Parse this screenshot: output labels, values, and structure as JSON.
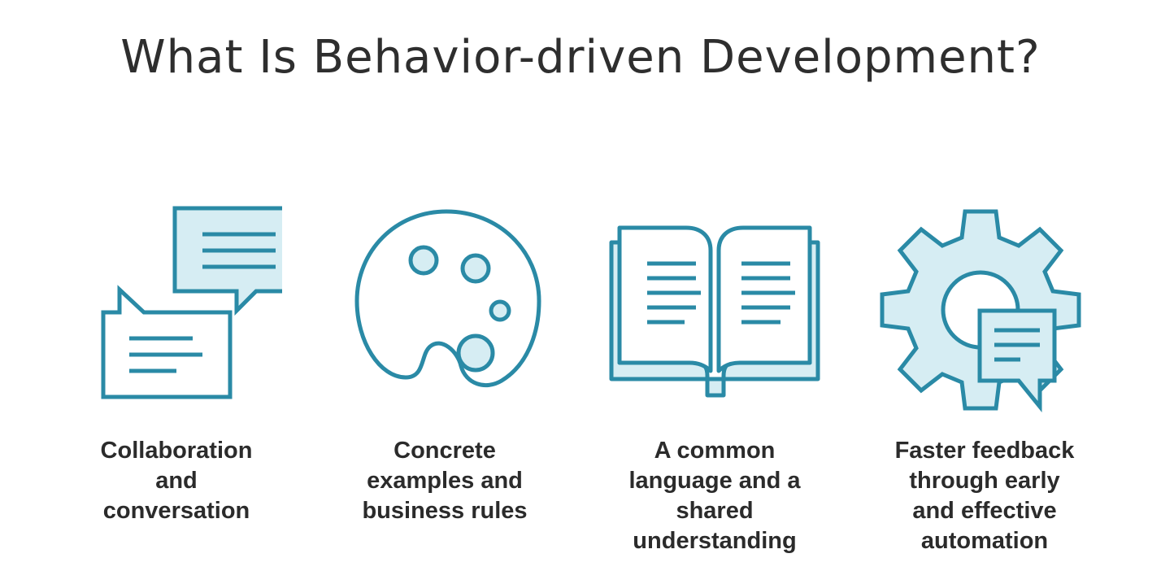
{
  "slide": {
    "title": "What Is Behavior-driven Development?",
    "accent_color": "#2a8aa6",
    "fill_color": "#d6edf3",
    "items": [
      {
        "icon": "speech-bubbles-icon",
        "caption_lines": [
          "Collaboration",
          "and",
          "conversation"
        ]
      },
      {
        "icon": "palette-icon",
        "caption_lines": [
          "Concrete",
          "examples and",
          "business rules"
        ]
      },
      {
        "icon": "open-book-icon",
        "caption_lines": [
          "A common",
          "language and a",
          "shared",
          "understanding"
        ]
      },
      {
        "icon": "gear-with-message-icon",
        "caption_lines": [
          "Faster feedback",
          "through early",
          "and effective",
          "automation"
        ]
      }
    ]
  }
}
